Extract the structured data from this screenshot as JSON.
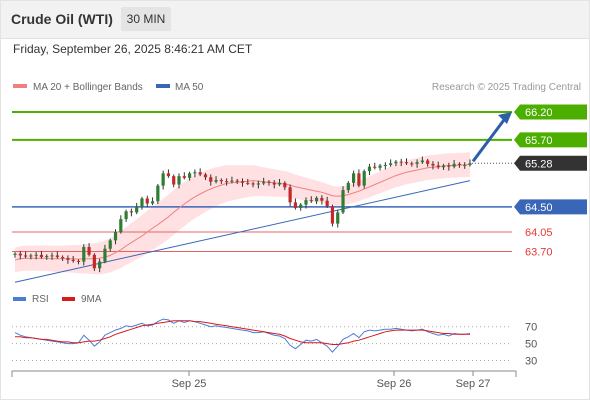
{
  "header": {
    "instrument": "Crude Oil (WTI)",
    "timeframe": "30 MIN"
  },
  "datetime": "Friday, September 26, 2025 8:46:21 AM CET",
  "legend": {
    "ma20_label": "MA 20 + Bollinger Bands",
    "ma50_label": "MA 50",
    "credit": "Research © 2025 Trading Central"
  },
  "rsi_legend": {
    "rsi_label": "RSI",
    "ma_label": "9MA"
  },
  "colors": {
    "resistance": "#4caf00",
    "support": "#3a66b8",
    "pivot_red": "#e06666",
    "current": "#333333",
    "ma20": "#f08080",
    "ma50": "#3a66b8",
    "bands": "#ffd6d9",
    "up_candle": "#2e7d32",
    "down_candle": "#c62828",
    "rsi": "#4a7dd8",
    "rsi_ma": "#d81b1b",
    "arrow": "#2e5ea8"
  },
  "chart_data": {
    "type": "candlestick",
    "y_axis": {
      "min": 63.1,
      "max": 66.45
    },
    "x_ticks": [
      "Sep 25",
      "Sep 26",
      "Sep 27"
    ],
    "levels": [
      {
        "value": 66.2,
        "label": "66.20",
        "kind": "resistance"
      },
      {
        "value": 65.7,
        "label": "65.70",
        "kind": "resistance"
      },
      {
        "value": 65.28,
        "label": "65.28",
        "kind": "current"
      },
      {
        "value": 64.5,
        "label": "64.50",
        "kind": "pivot"
      },
      {
        "value": 64.05,
        "label": "64.05",
        "kind": "support"
      },
      {
        "value": 63.7,
        "label": "63.70",
        "kind": "support"
      }
    ],
    "closes": [
      63.66,
      63.63,
      63.61,
      63.63,
      63.64,
      63.6,
      63.62,
      63.63,
      63.6,
      63.58,
      63.55,
      63.53,
      63.52,
      63.78,
      63.64,
      63.4,
      63.52,
      63.75,
      63.9,
      64.05,
      64.28,
      64.42,
      64.4,
      64.5,
      64.65,
      64.56,
      64.6,
      64.88,
      65.1,
      65.05,
      64.9,
      65.05,
      65.02,
      65.1,
      65.12,
      65.08,
      65.03,
      64.95,
      64.98,
      64.96,
      64.95,
      64.97,
      64.96,
      64.93,
      64.92,
      64.9,
      64.92,
      64.95,
      64.93,
      64.9,
      64.93,
      64.85,
      64.58,
      64.48,
      64.54,
      64.62,
      64.6,
      64.66,
      64.61,
      64.51,
      64.2,
      64.4,
      64.8,
      64.93,
      65.1,
      64.88,
      65.14,
      65.22,
      65.2,
      65.24,
      65.25,
      65.28,
      65.31,
      65.3,
      65.28,
      65.27,
      65.3,
      65.33,
      65.27,
      65.24,
      65.21,
      65.24,
      65.22,
      65.27,
      65.25,
      65.25,
      65.28
    ],
    "ma20": [
      63.55,
      63.57,
      63.58,
      63.58,
      63.58,
      63.58,
      63.58,
      63.57,
      63.57,
      63.57,
      63.57,
      63.57,
      63.56,
      63.57,
      63.57,
      63.57,
      63.58,
      63.6,
      63.63,
      63.68,
      63.73,
      63.8,
      63.86,
      63.92,
      63.98,
      64.05,
      64.12,
      64.18,
      64.25,
      64.32,
      64.4,
      64.48,
      64.55,
      64.62,
      64.68,
      64.73,
      64.78,
      64.82,
      64.86,
      64.89,
      64.92,
      64.93,
      64.94,
      64.95,
      64.96,
      64.97,
      64.96,
      64.95,
      64.94,
      64.93,
      64.92,
      64.91,
      64.89,
      64.86,
      64.84,
      64.82,
      64.8,
      64.78,
      64.76,
      64.73,
      64.7,
      64.69,
      64.7,
      64.72,
      64.75,
      64.78,
      64.82,
      64.86,
      64.9,
      64.94,
      64.98,
      65.02,
      65.06,
      65.09,
      65.12,
      65.14,
      65.16,
      65.18,
      65.2,
      65.21,
      65.22,
      65.23,
      65.24,
      65.24,
      65.25,
      65.25,
      65.26
    ],
    "ma50_line": [
      {
        "x": 0,
        "y": 63.15
      },
      {
        "x": 86,
        "y": 64.97
      }
    ],
    "rsi_axis": {
      "min": 20,
      "max": 85,
      "ticks": [
        70,
        50,
        30
      ]
    },
    "rsi": [
      63,
      60,
      58,
      57,
      56,
      55,
      54,
      53,
      52,
      51,
      50,
      50,
      51,
      60,
      54,
      47,
      52,
      60,
      63,
      66,
      68,
      71,
      70,
      72,
      74,
      71,
      72,
      76,
      79,
      78,
      74,
      77,
      75,
      77,
      76,
      74,
      72,
      70,
      71,
      70,
      69,
      68,
      67,
      66,
      65,
      63,
      63,
      64,
      62,
      60,
      59,
      56,
      48,
      44,
      49,
      54,
      53,
      55,
      51,
      47,
      40,
      47,
      55,
      58,
      62,
      57,
      64,
      66,
      65,
      66,
      67,
      67,
      68,
      67,
      66,
      65,
      66,
      67,
      64,
      62,
      60,
      61,
      59,
      62,
      61,
      61,
      62
    ],
    "rsi_ma": [
      58,
      58,
      57,
      57,
      56,
      55,
      55,
      54,
      53,
      52,
      52,
      51,
      51,
      52,
      53,
      53,
      54,
      56,
      58,
      61,
      63,
      65,
      67,
      69,
      71,
      72,
      73,
      74,
      75,
      76,
      77,
      77,
      77,
      77,
      76,
      76,
      75,
      74,
      73,
      72,
      71,
      70,
      69,
      68,
      67,
      66,
      65,
      64,
      63,
      62,
      61,
      59,
      56,
      54,
      52,
      51,
      51,
      51,
      51,
      50,
      49,
      49,
      50,
      51,
      53,
      54,
      56,
      58,
      60,
      62,
      64,
      65,
      66,
      66,
      66,
      66,
      66,
      66,
      65,
      64,
      63,
      62,
      62,
      61,
      61,
      61,
      61
    ]
  }
}
